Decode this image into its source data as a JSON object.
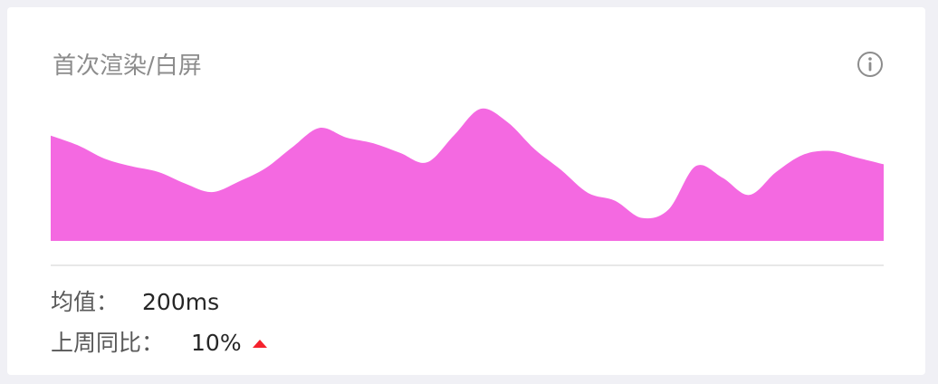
{
  "card": {
    "title": "首次渲染/白屏"
  },
  "stats": {
    "average_label": "均值：",
    "average_value": "200ms",
    "wow_label": "上周同比：",
    "wow_value": "10%",
    "wow_trend": "up"
  },
  "icons": {
    "info": "info-circle-icon",
    "trend": "triangle-up-icon"
  },
  "colors": {
    "area_fill": "#f469e1",
    "trend_up": "#f5222d"
  },
  "chart_data": {
    "type": "area",
    "title": "",
    "xlabel": "",
    "ylabel": "",
    "axes_visible": false,
    "grid": false,
    "legend": "none",
    "ylim": [
      0,
      140
    ],
    "x": [
      0,
      1,
      2,
      3,
      4,
      5,
      6,
      7,
      8,
      9,
      10,
      11,
      12,
      13,
      14,
      15,
      16,
      17,
      18,
      19,
      20,
      21,
      22,
      23,
      24,
      25,
      26,
      27,
      28,
      29,
      30,
      31
    ],
    "values": [
      110,
      100,
      86,
      78,
      72,
      60,
      51,
      62,
      76,
      98,
      118,
      108,
      102,
      92,
      82,
      110,
      138,
      124,
      96,
      74,
      50,
      42,
      24,
      33,
      78,
      66,
      48,
      72,
      90,
      94,
      87,
      80
    ]
  }
}
